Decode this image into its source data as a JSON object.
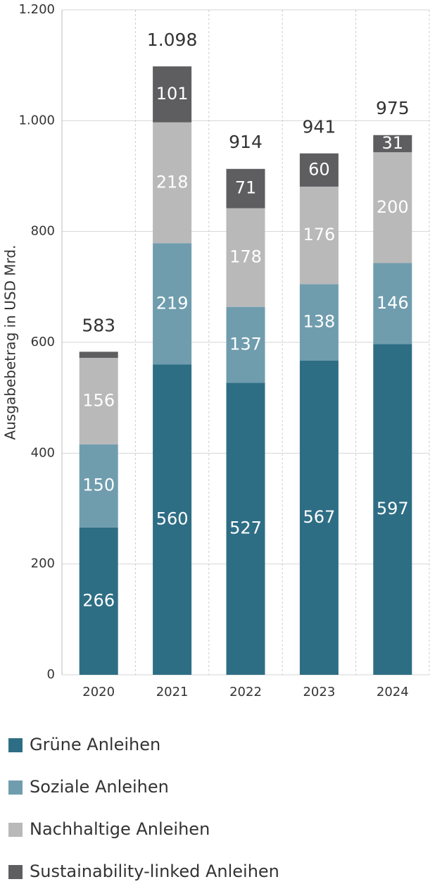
{
  "chart_data": {
    "type": "stacked-bar",
    "y_label": "Ausgabebetrag in USD Mrd.",
    "categories": [
      "2020",
      "2021",
      "2022",
      "2023",
      "2024"
    ],
    "series": [
      {
        "name": "Grüne Anleihen",
        "color": "#2e6e85",
        "values": [
          266,
          560,
          527,
          567,
          597
        ]
      },
      {
        "name": "Soziale Anleihen",
        "color": "#6f9dae",
        "values": [
          150,
          219,
          137,
          138,
          146
        ]
      },
      {
        "name": "Nachhaltige Anleihen",
        "color": "#b9b9ba",
        "values": [
          156,
          218,
          178,
          176,
          200
        ]
      },
      {
        "name": "Sustainability-linked Anleihen",
        "color": "#5e5e60",
        "values": [
          11,
          101,
          71,
          60,
          31
        ],
        "value_labels": [
          null,
          "101",
          "71",
          "60",
          "31"
        ]
      }
    ],
    "totals": {
      "values": [
        583,
        1098,
        914,
        941,
        975
      ],
      "value_labels": [
        "583",
        "1.098",
        "914",
        "941",
        "975"
      ]
    },
    "ylim": [
      0,
      1200
    ],
    "yticks": [
      0,
      200,
      400,
      600,
      800,
      {
        "value": 1000,
        "label": "1.000"
      },
      {
        "value": 1200,
        "label": "1.200"
      }
    ],
    "grid": true
  }
}
